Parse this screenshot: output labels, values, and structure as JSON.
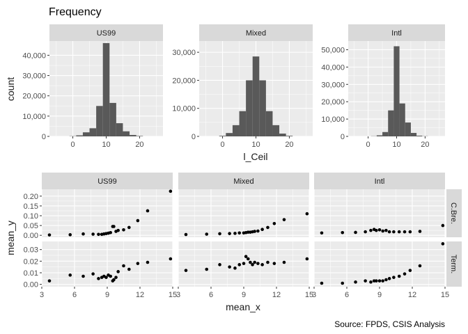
{
  "title": "Frequency",
  "source": "Source: FPDS, CSIS Analysis",
  "colors": {
    "panel_bg": "#ebebeb",
    "strip_bg": "#d9d9d9",
    "grid_major": "#ffffff",
    "bar_fill": "#595959",
    "point": "#000000",
    "text": "#1a1a1a",
    "tick_text": "#4d4d4d"
  },
  "chart_data": [
    {
      "type": "bar",
      "subtype": "histogram",
      "facet": "columns",
      "xlabel": "l_Ceil",
      "ylabel": "count",
      "xlim": [
        -7,
        27
      ],
      "x_ticks": [
        0,
        10,
        20
      ],
      "y_scale": "free",
      "bin_width": 2,
      "bin_centers": [
        -2,
        0,
        2,
        4,
        6,
        8,
        10,
        12,
        14,
        16,
        18,
        20,
        22,
        24
      ],
      "series": [
        {
          "name": "US99",
          "ylim": [
            0,
            47000
          ],
          "y_ticks": [
            0,
            10000,
            20000,
            30000,
            40000
          ],
          "y_tick_labels": [
            "0",
            "10,000",
            "20,000",
            "30,000",
            "40,000"
          ],
          "values": [
            0,
            100,
            500,
            2000,
            4000,
            15000,
            46000,
            16500,
            6500,
            2500,
            700,
            200,
            0,
            0
          ]
        },
        {
          "name": "Mixed",
          "ylim": [
            0,
            34000
          ],
          "y_ticks": [
            0,
            10000,
            20000,
            30000
          ],
          "y_tick_labels": [
            "0",
            "10,000",
            "20,000",
            "30,000"
          ],
          "values": [
            0,
            200,
            1200,
            4000,
            9000,
            20000,
            28500,
            20000,
            9000,
            4000,
            1000,
            200,
            0,
            0
          ]
        },
        {
          "name": "Intl",
          "ylim": [
            0,
            55000
          ],
          "y_ticks": [
            0,
            10000,
            20000,
            30000,
            40000,
            50000
          ],
          "y_tick_labels": [
            "0",
            "10,000",
            "20,000",
            "30,000",
            "40,000",
            "50,000"
          ],
          "values": [
            0,
            0,
            100,
            600,
            2500,
            15000,
            52000,
            19000,
            8000,
            2000,
            400,
            100,
            0,
            0
          ]
        }
      ]
    },
    {
      "type": "scatter",
      "facet": "grid",
      "xlabel": "mean_x",
      "ylabel": "mean_y",
      "xlim": [
        3,
        15
      ],
      "x_ticks": [
        3,
        6,
        9,
        12,
        15
      ],
      "columns": [
        "US99",
        "Mixed",
        "Intl"
      ],
      "rows": [
        {
          "name": "C.Bre.",
          "ylim": [
            -0.01,
            0.235
          ],
          "y_ticks": [
            0.0,
            0.05,
            0.1,
            0.15,
            0.2
          ],
          "y_tick_labels": [
            "0.00",
            "0.05",
            "0.10",
            "0.15",
            "0.20"
          ],
          "panels": [
            {
              "x": [
                3.7,
                5.6,
                6.8,
                7.7,
                8.2,
                8.5,
                8.7,
                8.9,
                9.1,
                9.3,
                9.5,
                9.6,
                9.8,
                10.0,
                10.5,
                11.0,
                11.8,
                12.7,
                14.8
              ],
              "y": [
                0.002,
                0.003,
                0.007,
                0.006,
                0.005,
                0.005,
                0.007,
                0.009,
                0.011,
                0.014,
                0.045,
                0.045,
                0.02,
                0.025,
                0.028,
                0.04,
                0.075,
                0.125,
                0.225
              ]
            },
            {
              "x": [
                3.7,
                5.6,
                6.8,
                7.7,
                8.2,
                8.6,
                9.0,
                9.2,
                9.4,
                9.6,
                9.8,
                10.0,
                10.3,
                10.7,
                11.2,
                11.8,
                12.7,
                14.8
              ],
              "y": [
                0.004,
                0.006,
                0.008,
                0.009,
                0.01,
                0.012,
                0.012,
                0.014,
                0.016,
                0.016,
                0.018,
                0.02,
                0.022,
                0.03,
                0.04,
                0.06,
                0.08,
                0.11
              ]
            },
            {
              "x": [
                3.7,
                5.6,
                6.8,
                7.7,
                8.2,
                8.5,
                8.7,
                9.0,
                9.3,
                9.6,
                9.9,
                10.3,
                10.8,
                11.3,
                11.8,
                12.7,
                14.8
              ],
              "y": [
                0.012,
                0.014,
                0.015,
                0.018,
                0.025,
                0.03,
                0.025,
                0.028,
                0.022,
                0.025,
                0.018,
                0.018,
                0.018,
                0.018,
                0.018,
                0.02,
                0.05
              ]
            }
          ]
        },
        {
          "name": "Term.",
          "ylim": [
            -0.002,
            0.037
          ],
          "y_ticks": [
            0.0,
            0.01,
            0.02,
            0.03
          ],
          "y_tick_labels": [
            "0.00",
            "0.01",
            "0.02",
            "0.03"
          ],
          "panels": [
            {
              "x": [
                3.7,
                5.6,
                6.8,
                7.7,
                8.2,
                8.5,
                8.7,
                8.9,
                9.1,
                9.3,
                9.5,
                9.6,
                9.8,
                10.0,
                10.5,
                11.0,
                11.8,
                12.7,
                14.8
              ],
              "y": [
                0.003,
                0.008,
                0.007,
                0.009,
                0.005,
                0.006,
                0.007,
                0.006,
                0.008,
                0.007,
                0.003,
                0.004,
                0.006,
                0.011,
                0.016,
                0.013,
                0.018,
                0.019,
                0.022
              ]
            },
            {
              "x": [
                3.7,
                5.6,
                6.8,
                7.7,
                8.2,
                8.6,
                9.0,
                9.2,
                9.4,
                9.6,
                9.8,
                10.0,
                10.3,
                10.7,
                11.2,
                11.8,
                12.7,
                14.8
              ],
              "y": [
                0.012,
                0.013,
                0.017,
                0.015,
                0.014,
                0.017,
                0.018,
                0.024,
                0.022,
                0.019,
                0.017,
                0.019,
                0.018,
                0.017,
                0.019,
                0.018,
                0.019,
                0.022
              ]
            },
            {
              "x": [
                3.7,
                5.6,
                6.8,
                7.7,
                8.2,
                8.5,
                8.7,
                9.0,
                9.3,
                9.6,
                9.9,
                10.3,
                10.8,
                11.3,
                11.8,
                12.7,
                14.8
              ],
              "y": [
                0.001,
                0.001,
                0.002,
                0.003,
                0.002,
                0.003,
                0.003,
                0.003,
                0.003,
                0.004,
                0.005,
                0.006,
                0.007,
                0.009,
                0.012,
                0.016,
                0.035
              ]
            }
          ]
        }
      ]
    }
  ]
}
